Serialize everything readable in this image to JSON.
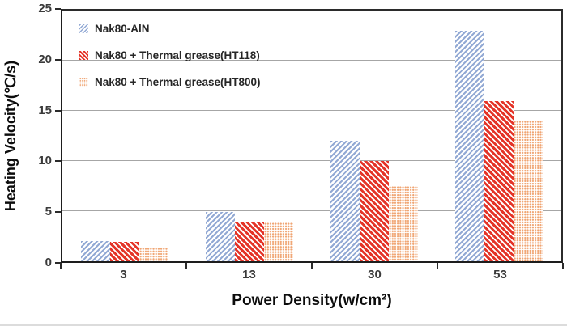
{
  "chart_data": {
    "type": "bar",
    "title": "",
    "categories": [
      "3",
      "13",
      "30",
      "53"
    ],
    "series": [
      {
        "name": "Nak80-AlN",
        "pattern": "diagonal-up-hatch",
        "color": "#92A9D4",
        "values": [
          2.0,
          4.9,
          12.0,
          23.0
        ]
      },
      {
        "name": "Nak80 + Thermal grease(HT118)",
        "pattern": "diagonal-down-hatch",
        "color": "#E43428",
        "values": [
          1.9,
          3.9,
          10.0,
          16.0
        ]
      },
      {
        "name": "Nak80 + Thermal grease(HT800)",
        "pattern": "dots",
        "color": "#F0A573",
        "values": [
          1.4,
          3.9,
          7.5,
          14.0
        ]
      }
    ],
    "xlabel": "Power Density(w/cm²)",
    "ylabel": "Heating Velocity(℃/s)",
    "ylim": [
      0,
      25
    ],
    "yticks": [
      0,
      5,
      10,
      15,
      20,
      25
    ],
    "grid": "horizontal-gray",
    "legend_position": "inside-top-left",
    "axis_color": "#2b2b2b",
    "gridline_color": "#a6a6a6"
  }
}
